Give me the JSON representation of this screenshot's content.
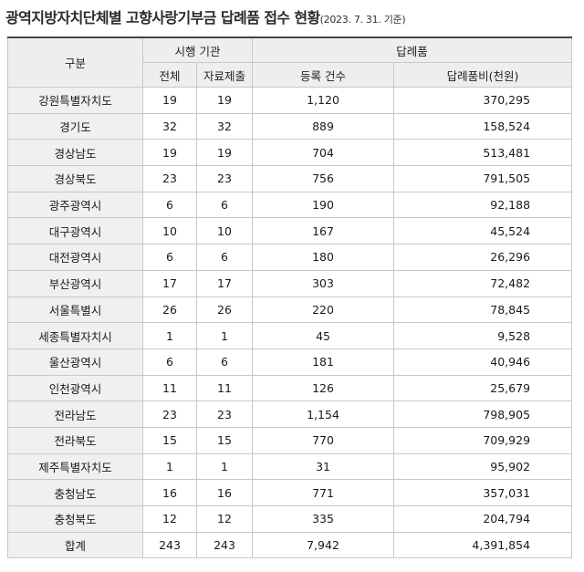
{
  "title": {
    "main": "광역지방자치단체별 고향사랑기부금 답례품 접수 현황",
    "date": "(2023. 7. 31. 기준)"
  },
  "header": {
    "category": "구분",
    "agencies_group": "시행 기관",
    "products_group": "답례품",
    "total_col": "전체",
    "submitted_col": "자료제출",
    "count_col": "등록 건수",
    "cost_col": "답례품비(천원)"
  },
  "rows": [
    {
      "region": "강원특별자치도",
      "total": "19",
      "submitted": "19",
      "count": "1,120",
      "cost": "370,295"
    },
    {
      "region": "경기도",
      "total": "32",
      "submitted": "32",
      "count": "889",
      "cost": "158,524"
    },
    {
      "region": "경상남도",
      "total": "19",
      "submitted": "19",
      "count": "704",
      "cost": "513,481"
    },
    {
      "region": "경상북도",
      "total": "23",
      "submitted": "23",
      "count": "756",
      "cost": "791,505"
    },
    {
      "region": "광주광역시",
      "total": "6",
      "submitted": "6",
      "count": "190",
      "cost": "92,188"
    },
    {
      "region": "대구광역시",
      "total": "10",
      "submitted": "10",
      "count": "167",
      "cost": "45,524"
    },
    {
      "region": "대전광역시",
      "total": "6",
      "submitted": "6",
      "count": "180",
      "cost": "26,296"
    },
    {
      "region": "부산광역시",
      "total": "17",
      "submitted": "17",
      "count": "303",
      "cost": "72,482"
    },
    {
      "region": "서울특별시",
      "total": "26",
      "submitted": "26",
      "count": "220",
      "cost": "78,845"
    },
    {
      "region": "세종특별자치시",
      "total": "1",
      "submitted": "1",
      "count": "45",
      "cost": "9,528"
    },
    {
      "region": "울산광역시",
      "total": "6",
      "submitted": "6",
      "count": "181",
      "cost": "40,946"
    },
    {
      "region": "인천광역시",
      "total": "11",
      "submitted": "11",
      "count": "126",
      "cost": "25,679"
    },
    {
      "region": "전라남도",
      "total": "23",
      "submitted": "23",
      "count": "1,154",
      "cost": "798,905"
    },
    {
      "region": "전라북도",
      "total": "15",
      "submitted": "15",
      "count": "770",
      "cost": "709,929"
    },
    {
      "region": "제주특별자치도",
      "total": "1",
      "submitted": "1",
      "count": "31",
      "cost": "95,902"
    },
    {
      "region": "충청남도",
      "total": "16",
      "submitted": "16",
      "count": "771",
      "cost": "357,031"
    },
    {
      "region": "충청북도",
      "total": "12",
      "submitted": "12",
      "count": "335",
      "cost": "204,794"
    }
  ],
  "summary": {
    "label": "합계",
    "total": "243",
    "submitted": "243",
    "count": "7,942",
    "cost": "4,391,854"
  }
}
